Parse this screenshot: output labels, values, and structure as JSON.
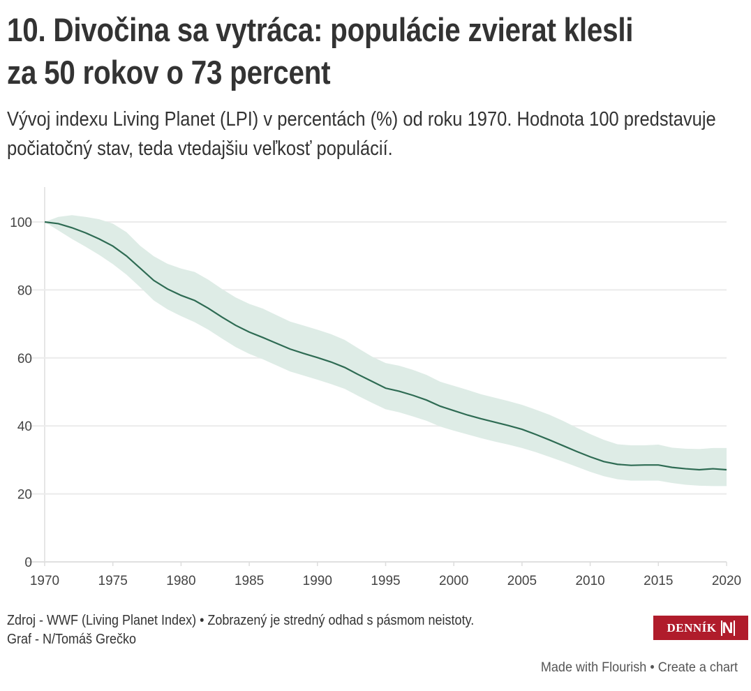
{
  "header": {
    "title": "10. Divočina sa vytráca: populácie zvierat klesli za 50 rokov o 73 percent",
    "subtitle": "Vývoj indexu Living Planet (LPI) v percentách (%) od roku 1970. Hodnota 100 predstavuje počiatočný stav, teda vtedajšiu veľkosť populácií."
  },
  "chart_data": {
    "type": "area",
    "title": "10. Divočina sa vytráca: populácie zvierat klesli za 50 rokov o 73 percent",
    "xlabel": "",
    "ylabel": "",
    "xlim": [
      1970,
      2020
    ],
    "ylim": [
      0,
      110
    ],
    "xticks": [
      "1970",
      "1975",
      "1980",
      "1985",
      "1990",
      "1995",
      "2000",
      "2005",
      "2010",
      "2015",
      "2020"
    ],
    "yticks": [
      "0",
      "20",
      "40",
      "60",
      "80",
      "100"
    ],
    "grid": true,
    "line_color": "#2e6b53",
    "band_color": "#deece6",
    "x": [
      1970,
      1971,
      1972,
      1973,
      1974,
      1975,
      1976,
      1977,
      1978,
      1979,
      1980,
      1981,
      1982,
      1983,
      1984,
      1985,
      1986,
      1987,
      1988,
      1989,
      1990,
      1991,
      1992,
      1993,
      1994,
      1995,
      1996,
      1997,
      1998,
      1999,
      2000,
      2001,
      2002,
      2003,
      2004,
      2005,
      2006,
      2007,
      2008,
      2009,
      2010,
      2011,
      2012,
      2013,
      2014,
      2015,
      2016,
      2017,
      2018,
      2019,
      2020
    ],
    "series": [
      {
        "name": "LPI",
        "values": [
          100,
          99.5,
          98.3,
          96.8,
          95,
          92.9,
          90,
          86.4,
          82.8,
          80.3,
          78.4,
          76.9,
          74.6,
          72,
          69.6,
          67.6,
          66,
          64.3,
          62.6,
          61.3,
          60.1,
          58.8,
          57.2,
          55.1,
          53.1,
          51.1,
          50.2,
          49,
          47.6,
          45.8,
          44.5,
          43.2,
          42.1,
          41.1,
          40.1,
          39,
          37.5,
          35.9,
          34.2,
          32.5,
          30.9,
          29.5,
          28.7,
          28.4,
          28.5,
          28.5,
          27.8,
          27.4,
          27.1,
          27.4,
          27.1
        ]
      },
      {
        "name": "upper",
        "values": [
          100,
          101.5,
          102,
          101.5,
          100.8,
          99.5,
          97,
          93,
          89.9,
          87.7,
          86.3,
          85.3,
          83,
          80.3,
          77.8,
          75.9,
          74.5,
          72.6,
          70.7,
          69.5,
          68.3,
          67,
          65.3,
          62.8,
          60.4,
          58.5,
          57.7,
          56.5,
          55,
          53,
          51.8,
          50.6,
          49.3,
          48.3,
          47.3,
          46.2,
          44.8,
          43.3,
          41.5,
          39.5,
          37.6,
          35.9,
          34.6,
          34.3,
          34.3,
          34.5,
          33.6,
          33.3,
          33.2,
          33.5,
          33.5
        ]
      },
      {
        "name": "lower",
        "values": [
          100,
          97.5,
          95,
          92.7,
          90.3,
          87.6,
          84.5,
          80.8,
          76.9,
          74.3,
          72.3,
          70.5,
          68.3,
          65.7,
          63.2,
          61.2,
          59.6,
          57.8,
          56,
          54.8,
          53.6,
          52.3,
          50.9,
          48.8,
          46.8,
          44.9,
          44,
          42.8,
          41.5,
          39.8,
          38.6,
          37.5,
          36.4,
          35.4,
          34.5,
          33.5,
          32.3,
          30.9,
          29.5,
          28,
          26.5,
          25.2,
          24.3,
          23.9,
          23.9,
          23.9,
          23.2,
          22.7,
          22.4,
          22.3,
          22.3
        ]
      }
    ]
  },
  "footer": {
    "source": "Zdroj - WWF (Living Planet Index) • Zobrazený je stredný odhad s pásmom neistoty.",
    "author": "Graf - N/Tomáš Grečko",
    "logo_text": "DENNÍK",
    "logo_mark": "N",
    "made_with": "Made with Flourish",
    "separator": " • ",
    "create": "Create a chart"
  }
}
